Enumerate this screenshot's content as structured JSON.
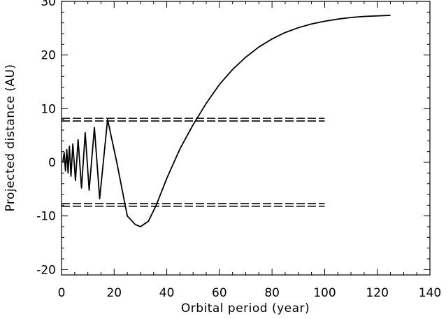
{
  "chart_data": {
    "type": "line",
    "xlabel": "Orbital period (year)",
    "ylabel": "Projected distance (AU)",
    "xlim": [
      0,
      140
    ],
    "ylim": [
      -21,
      30
    ],
    "xticks": [
      0,
      20,
      40,
      60,
      80,
      100,
      120,
      140
    ],
    "yticks": [
      -20,
      -10,
      0,
      10,
      20,
      30
    ],
    "grid": false,
    "legend": "none",
    "series": [
      {
        "style": "solid",
        "x": [
          0.5,
          1,
          1.5,
          2,
          2.5,
          3,
          3.6,
          4.3,
          5.3,
          6.3,
          7.6,
          9,
          10.5,
          12.5,
          14.5,
          17.5,
          21,
          25,
          28,
          30,
          33,
          36,
          40,
          45,
          50,
          55,
          60,
          65,
          70,
          75,
          80,
          85,
          90,
          95,
          100,
          105,
          110,
          115,
          120,
          125
        ],
        "y": [
          0,
          1.8,
          -1.6,
          2.4,
          -2.0,
          3.0,
          -2.6,
          3.4,
          -3.4,
          4.2,
          -4.8,
          5.5,
          -5.2,
          6.5,
          -6.8,
          8.0,
          0,
          -10.0,
          -11.6,
          -12.0,
          -11.0,
          -8.0,
          -3.0,
          2.5,
          7.0,
          11.0,
          14.5,
          17.3,
          19.6,
          21.5,
          23.0,
          24.2,
          25.1,
          25.8,
          26.3,
          26.7,
          27.0,
          27.2,
          27.3,
          27.4
        ]
      },
      {
        "style": "dashed",
        "x": [
          0,
          100
        ],
        "y": [
          8.2,
          8.2
        ]
      },
      {
        "style": "dashed",
        "x": [
          0,
          100
        ],
        "y": [
          7.7,
          7.7
        ]
      },
      {
        "style": "dashed",
        "x": [
          0,
          100
        ],
        "y": [
          -7.7,
          -7.7
        ]
      },
      {
        "style": "dashed",
        "x": [
          0,
          100
        ],
        "y": [
          -8.2,
          -8.2
        ]
      }
    ]
  }
}
